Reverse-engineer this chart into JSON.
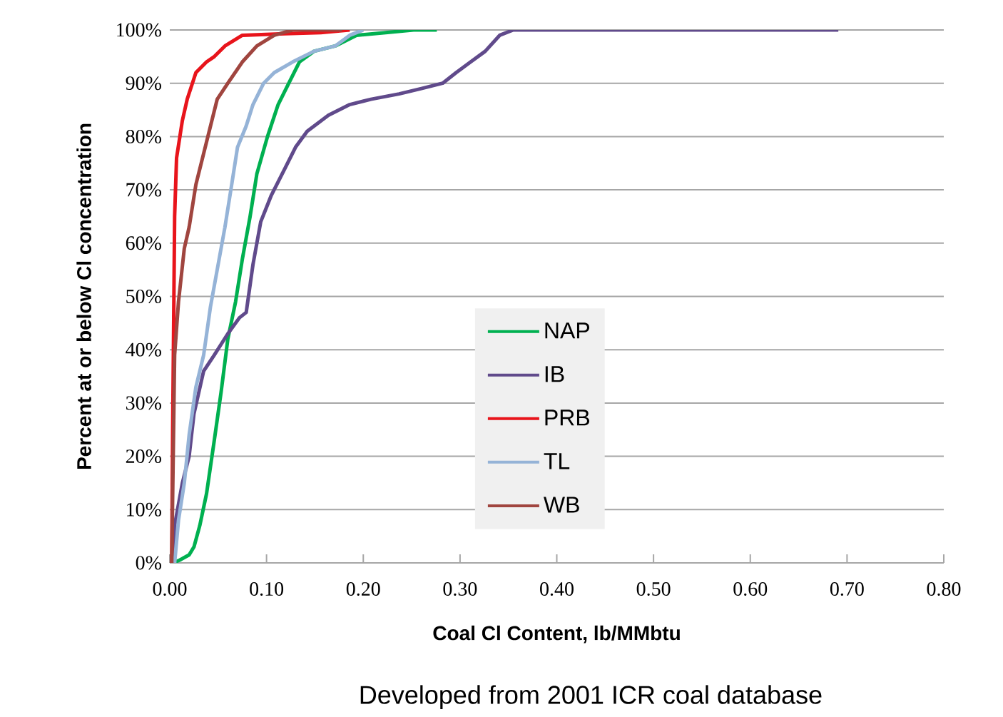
{
  "chart_data": {
    "type": "line",
    "xlabel": "Coal Cl Content, lb/MMbtu",
    "ylabel": "Percent at or below Cl concentration",
    "annotations": [
      "Developed from 2001 ICR coal database"
    ],
    "xlim": [
      0,
      0.8
    ],
    "ylim": [
      0,
      100
    ],
    "xticks": [
      {
        "value": 0,
        "label": "0.00"
      },
      {
        "value": 0.1,
        "label": "0.10"
      },
      {
        "value": 0.2,
        "label": "0.20"
      },
      {
        "value": 0.3,
        "label": "0.30"
      },
      {
        "value": 0.4,
        "label": "0.40"
      },
      {
        "value": 0.5,
        "label": "0.50"
      },
      {
        "value": 0.6,
        "label": "0.60"
      },
      {
        "value": 0.7,
        "label": "0.70"
      },
      {
        "value": 0.8,
        "label": "0.80"
      }
    ],
    "yticks": [
      {
        "value": 0,
        "label": "0%"
      },
      {
        "value": 10,
        "label": "10%"
      },
      {
        "value": 20,
        "label": "20%"
      },
      {
        "value": 30,
        "label": "30%"
      },
      {
        "value": 40,
        "label": "40%"
      },
      {
        "value": 50,
        "label": "50%"
      },
      {
        "value": 60,
        "label": "60%"
      },
      {
        "value": 70,
        "label": "70%"
      },
      {
        "value": 80,
        "label": "80%"
      },
      {
        "value": 90,
        "label": "90%"
      },
      {
        "value": 100,
        "label": "100%"
      }
    ],
    "grid": "y",
    "legend": "center",
    "marker": "none",
    "line_style": "solid",
    "series": [
      {
        "name": "NAP",
        "color": "#00b050",
        "x": [
          0.003,
          0.01,
          0.02,
          0.025,
          0.031,
          0.038,
          0.046,
          0.053,
          0.06,
          0.068,
          0.075,
          0.083,
          0.09,
          0.101,
          0.112,
          0.123,
          0.134,
          0.149,
          0.171,
          0.193,
          0.223,
          0.252,
          0.276
        ],
        "values": [
          0,
          0.5,
          1.5,
          3,
          7,
          13,
          23,
          32,
          42,
          49,
          57,
          65,
          73,
          80,
          86,
          90,
          94,
          96,
          97,
          99,
          99.5,
          100,
          100
        ]
      },
      {
        "name": "IB",
        "color": "#604a8b",
        "x": [
          0.003,
          0.005,
          0.013,
          0.02,
          0.025,
          0.035,
          0.046,
          0.06,
          0.072,
          0.079,
          0.086,
          0.094,
          0.105,
          0.119,
          0.13,
          0.142,
          0.164,
          0.186,
          0.208,
          0.237,
          0.26,
          0.282,
          0.296,
          0.311,
          0.326,
          0.341,
          0.355,
          0.691
        ],
        "values": [
          0,
          7,
          15,
          20,
          28,
          36,
          39,
          43,
          46,
          47,
          56,
          64,
          69,
          74,
          78,
          81,
          84,
          86,
          87,
          88,
          89,
          90,
          92,
          94,
          96,
          99,
          100,
          100
        ]
      },
      {
        "name": "PRB",
        "color": "#e8141b",
        "x": [
          0.002,
          0.003,
          0.004,
          0.005,
          0.007,
          0.013,
          0.018,
          0.027,
          0.038,
          0.046,
          0.057,
          0.075,
          0.119,
          0.156,
          0.186
        ],
        "values": [
          0,
          25,
          45,
          65,
          76,
          83,
          87,
          92,
          94,
          95,
          97,
          99,
          99.3,
          99.5,
          100
        ]
      },
      {
        "name": "TL",
        "color": "#95b3d7",
        "x": [
          0.005,
          0.009,
          0.015,
          0.02,
          0.027,
          0.035,
          0.042,
          0.049,
          0.057,
          0.064,
          0.07,
          0.079,
          0.086,
          0.097,
          0.108,
          0.127,
          0.149,
          0.171,
          0.186,
          0.2
        ],
        "values": [
          0,
          8,
          15,
          24,
          33,
          39,
          48,
          55,
          63,
          71,
          78,
          82,
          86,
          90,
          92,
          94,
          96,
          97,
          99,
          100
        ]
      },
      {
        "name": "WB",
        "color": "#a0453f",
        "x": [
          0.002,
          0.005,
          0.009,
          0.015,
          0.02,
          0.027,
          0.038,
          0.049,
          0.06,
          0.075,
          0.09,
          0.108,
          0.127,
          0.178
        ],
        "values": [
          0,
          39,
          49,
          59,
          63,
          71,
          79,
          87,
          90,
          94,
          97,
          99,
          100,
          100
        ]
      }
    ]
  }
}
